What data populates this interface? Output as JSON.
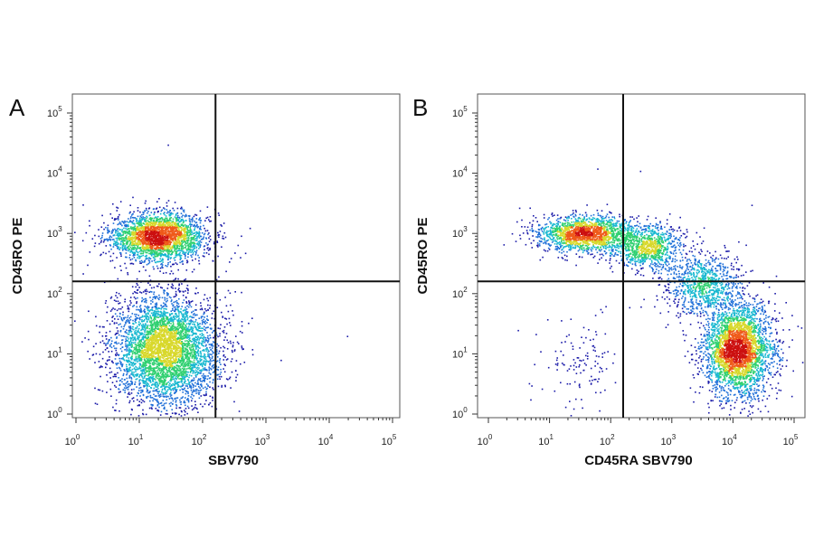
{
  "chart_data": [
    {
      "type": "scatter",
      "panel_label": "A",
      "xlabel": "SBV790",
      "ylabel": "CD45RO PE",
      "x_scale": "log",
      "y_scale": "log",
      "xlim": [
        1,
        100000
      ],
      "ylim": [
        1,
        100000
      ],
      "x_ticks": [
        {
          "base": "10",
          "exp": "0"
        },
        {
          "base": "10",
          "exp": "1"
        },
        {
          "base": "10",
          "exp": "2"
        },
        {
          "base": "10",
          "exp": "3"
        },
        {
          "base": "10",
          "exp": "4"
        },
        {
          "base": "10",
          "exp": "5"
        }
      ],
      "y_ticks": [
        {
          "base": "10",
          "exp": "0"
        },
        {
          "base": "10",
          "exp": "1"
        },
        {
          "base": "10",
          "exp": "2"
        },
        {
          "base": "10",
          "exp": "3"
        },
        {
          "base": "10",
          "exp": "4"
        },
        {
          "base": "10",
          "exp": "5"
        }
      ],
      "quadrant_gates": {
        "x": 160,
        "y": 160
      },
      "clusters": [
        {
          "center": [
            20,
            900
          ],
          "spread_decades": [
            0.38,
            0.2
          ],
          "count": 2600
        },
        {
          "center": [
            25,
            12
          ],
          "spread_decades": [
            0.42,
            0.45
          ],
          "count": 4200
        }
      ],
      "outliers": [
        [
          28,
          30000
        ],
        [
          320,
          110
        ],
        [
          520,
          33
        ],
        [
          1700,
          8
        ],
        [
          230,
          240
        ],
        [
          19000,
          20
        ],
        [
          600,
          12
        ]
      ],
      "color_scale": [
        "#1a1aa8",
        "#1f6fd8",
        "#18b8d0",
        "#2fd070",
        "#d8d82a",
        "#ef5a1a",
        "#cc1010"
      ]
    },
    {
      "type": "scatter",
      "panel_label": "B",
      "xlabel": "CD45RA SBV790",
      "ylabel": "CD45RO PE",
      "x_scale": "log",
      "y_scale": "log",
      "xlim": [
        1,
        100000
      ],
      "ylim": [
        1,
        100000
      ],
      "x_ticks": [
        {
          "base": "10",
          "exp": "0"
        },
        {
          "base": "10",
          "exp": "1"
        },
        {
          "base": "10",
          "exp": "2"
        },
        {
          "base": "10",
          "exp": "3"
        },
        {
          "base": "10",
          "exp": "4"
        },
        {
          "base": "10",
          "exp": "5"
        }
      ],
      "y_ticks": [
        {
          "base": "10",
          "exp": "0"
        },
        {
          "base": "10",
          "exp": "1"
        },
        {
          "base": "10",
          "exp": "2"
        },
        {
          "base": "10",
          "exp": "3"
        },
        {
          "base": "10",
          "exp": "4"
        },
        {
          "base": "10",
          "exp": "5"
        }
      ],
      "quadrant_gates": {
        "x": 160,
        "y": 160
      },
      "clusters": [
        {
          "center": [
            40,
            1000
          ],
          "spread_decades": [
            0.42,
            0.15
          ],
          "count": 1800
        },
        {
          "center": [
            400,
            600
          ],
          "spread_decades": [
            0.28,
            0.18
          ],
          "count": 900
        },
        {
          "center": [
            3000,
            150
          ],
          "spread_decades": [
            0.3,
            0.25
          ],
          "count": 900
        },
        {
          "center": [
            12000,
            12
          ],
          "spread_decades": [
            0.28,
            0.38
          ],
          "count": 3200
        },
        {
          "center": [
            30,
            8
          ],
          "spread_decades": [
            0.3,
            0.4
          ],
          "count": 120
        }
      ],
      "outliers": [
        [
          60,
          12000
        ],
        [
          300,
          11000
        ],
        [
          800,
          400
        ],
        [
          3000,
          700
        ],
        [
          20000,
          3000
        ],
        [
          50000,
          200
        ],
        [
          50000,
          5
        ],
        [
          5,
          3
        ],
        [
          3,
          25
        ],
        [
          200,
          60
        ]
      ],
      "color_scale": [
        "#1a1aa8",
        "#1f6fd8",
        "#18b8d0",
        "#2fd070",
        "#d8d82a",
        "#ef5a1a",
        "#cc1010"
      ]
    }
  ]
}
